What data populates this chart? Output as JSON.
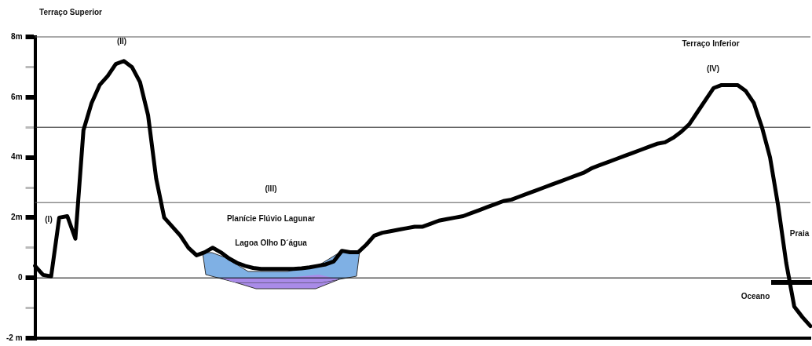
{
  "chart_data": {
    "type": "line",
    "categories": [
      null,
      null,
      null,
      null,
      null,
      null,
      null,
      null,
      null,
      null,
      null,
      null,
      null,
      null,
      null,
      null,
      null,
      null,
      null,
      null,
      null,
      null,
      null,
      null,
      null,
      null,
      null,
      null,
      null,
      null,
      null,
      null,
      null,
      null,
      null,
      null,
      null,
      null,
      null,
      null,
      null,
      null,
      null,
      null,
      null,
      null,
      null,
      null,
      null,
      null,
      null,
      null,
      null,
      null,
      null,
      null,
      null,
      null,
      null,
      null,
      null,
      null,
      null,
      null,
      null,
      null,
      null,
      null,
      null,
      null,
      null,
      null,
      null,
      null,
      null,
      null,
      null,
      null,
      null,
      null,
      null,
      null,
      null,
      null,
      null,
      null,
      null,
      null,
      null,
      null,
      null,
      null,
      null,
      null,
      null,
      null,
      null
    ],
    "series": [
      {
        "color": "#000000",
        "values": [
          0.4,
          0.1,
          0.05,
          2.0,
          2.05,
          1.3,
          4.9,
          5.8,
          6.4,
          6.7,
          7.1,
          7.2,
          7.0,
          6.5,
          5.4,
          3.3,
          2.0,
          1.7,
          1.4,
          1.0,
          0.75,
          0.85,
          1.0,
          0.85,
          0.65,
          0.5,
          0.4,
          0.33,
          0.3,
          0.3,
          0.3,
          0.3,
          0.3,
          0.32,
          0.35,
          0.4,
          0.45,
          0.55,
          0.9,
          0.85,
          0.85,
          1.1,
          1.4,
          1.5,
          1.55,
          1.6,
          1.65,
          1.7,
          1.7,
          1.8,
          1.9,
          1.95,
          2.0,
          2.05,
          2.15,
          2.25,
          2.35,
          2.45,
          2.55,
          2.6,
          2.7,
          2.8,
          2.9,
          3.0,
          3.1,
          3.2,
          3.3,
          3.4,
          3.5,
          3.65,
          3.75,
          3.85,
          3.95,
          4.05,
          4.15,
          4.25,
          4.35,
          4.45,
          4.5,
          4.65,
          4.85,
          5.1,
          5.5,
          5.9,
          6.3,
          6.4,
          6.4,
          6.4,
          6.2,
          5.8,
          5.0,
          4.0,
          2.4,
          0.5,
          -0.95,
          -1.3,
          -1.6
        ]
      }
    ],
    "ylim": [
      -2,
      8
    ],
    "yticks": [
      {
        "value": -2,
        "label": "-2 m"
      },
      {
        "value": -1,
        "label": null
      },
      0,
      {
        "value": 1,
        "label": null
      },
      {
        "value": 2,
        "label": "2m"
      },
      {
        "value": 3,
        "label": null
      },
      {
        "value": 4,
        "label": "4m"
      },
      {
        "value": 5,
        "label": null
      },
      {
        "value": 6,
        "label": "6m"
      },
      {
        "value": 7,
        "label": null
      },
      {
        "value": 8,
        "label": "8m"
      }
    ],
    "ref_lines": [
      {
        "axis": "y",
        "value": 8,
        "color": "#555555"
      },
      {
        "axis": "y",
        "value": 5,
        "color": "#222222"
      },
      {
        "axis": "y",
        "value": 2.5,
        "color": "#555555"
      },
      {
        "axis": "y",
        "value": 0,
        "color": "#000000"
      }
    ],
    "annotations": [
      "Terraço Superior",
      "(I)",
      "(II)",
      "(III)",
      "Planície Flúvio Lagunar",
      "Lagoa Olho D´água",
      "Terraço Inferior",
      "(IV)",
      "Praia",
      "Oceano"
    ],
    "tick_labels": "y",
    "grid": false,
    "legend": false,
    "marker": "none",
    "line_style": "solid"
  }
}
